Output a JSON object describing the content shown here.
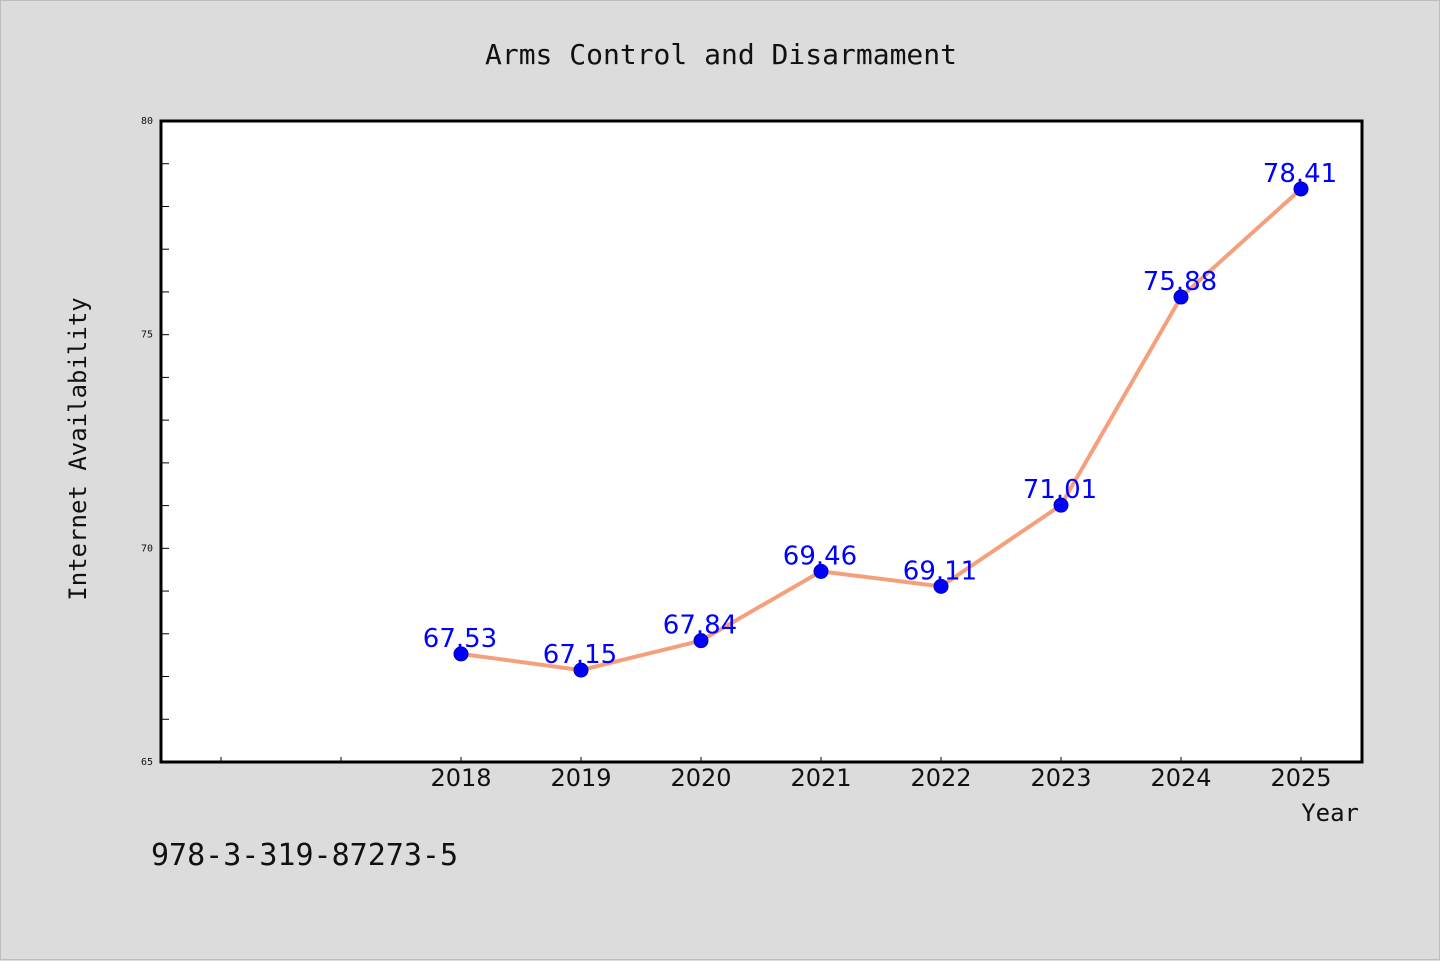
{
  "chart_data": {
    "type": "line",
    "title": "Arms Control and Disarmament",
    "xlabel": "Year",
    "ylabel": "Internet Availability",
    "x": [
      "2018",
      "2019",
      "2020",
      "2021",
      "2022",
      "2023",
      "2024",
      "2025"
    ],
    "x_tick_labels": [
      "2018",
      "2019",
      "2020",
      "2021",
      "2022",
      "2023",
      "2024",
      "2025"
    ],
    "y_tick_labels": [
      "65",
      "70",
      "75",
      "80"
    ],
    "ylim": [
      65,
      80
    ],
    "series": [
      {
        "values": [
          67.53,
          67.15,
          67.84,
          69.46,
          69.11,
          71.01,
          75.88,
          78.41
        ],
        "labels": [
          "67.53",
          "67.15",
          "67.84",
          "69.46",
          "69.11",
          "71.01",
          "75.88",
          "78.41"
        ]
      }
    ],
    "colors": {
      "line": "#f5a07d",
      "marker": "#0000ff",
      "label": "#0000ff",
      "background": "#dcdcdc",
      "plot_background": "#ffffff",
      "axis": "#000000"
    },
    "grid": false,
    "legend": "none"
  },
  "footer": {
    "code": "978-3-319-87273-5"
  }
}
